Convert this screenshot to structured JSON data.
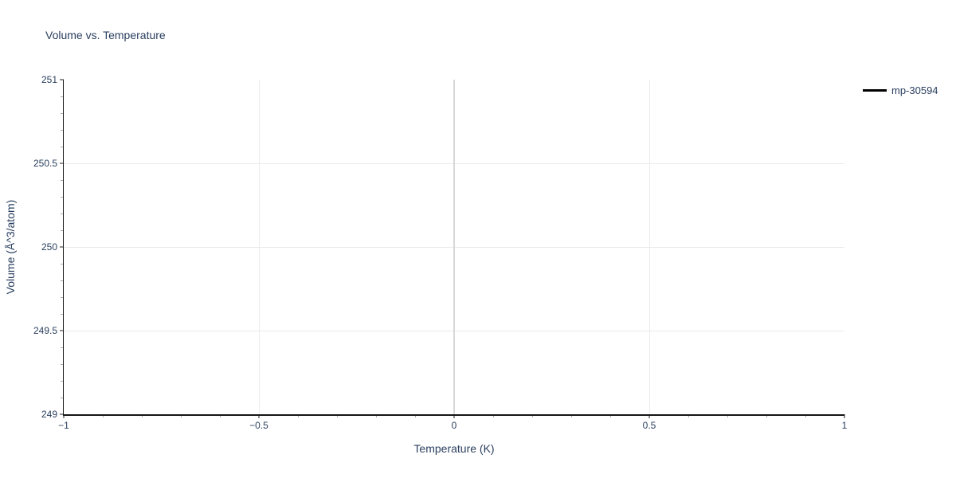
{
  "chart_data": {
    "type": "line",
    "title": "Volume vs. Temperature",
    "x_axis": {
      "label": "Temperature (K)",
      "range": [
        -1,
        1
      ],
      "major_ticks": [
        -1,
        -0.5,
        0,
        0.5,
        1
      ],
      "tick_labels": [
        "−1",
        "−0.5",
        "0",
        "0.5",
        "1"
      ],
      "minor_tick_step": 0.1,
      "gridlines": [
        -0.5,
        0,
        0.5
      ],
      "zero_line": 0
    },
    "y_axis": {
      "label": "Volume (Å^3/atom)",
      "range": [
        249,
        251
      ],
      "major_ticks": [
        249,
        249.5,
        250,
        250.5,
        251
      ],
      "tick_labels": [
        "249",
        "249.5",
        "250",
        "250.5",
        "251"
      ],
      "minor_tick_step": 0.1,
      "gridlines": [
        249.5,
        250,
        250.5
      ]
    },
    "series": [
      {
        "name": "mp-30594",
        "color": "#000000",
        "x": [],
        "y": []
      }
    ],
    "legend_position": "top-right",
    "grid": true
  },
  "colors": {
    "background": "#ffffff",
    "text": "#2a3f5f",
    "grid": "#ebebeb",
    "zero_line": "#d8d8d8",
    "axis_line": "#161616",
    "major_tick": "#8f8f8f",
    "minor_tick": "#a9a9a9",
    "legend_swatch": "#000000"
  }
}
